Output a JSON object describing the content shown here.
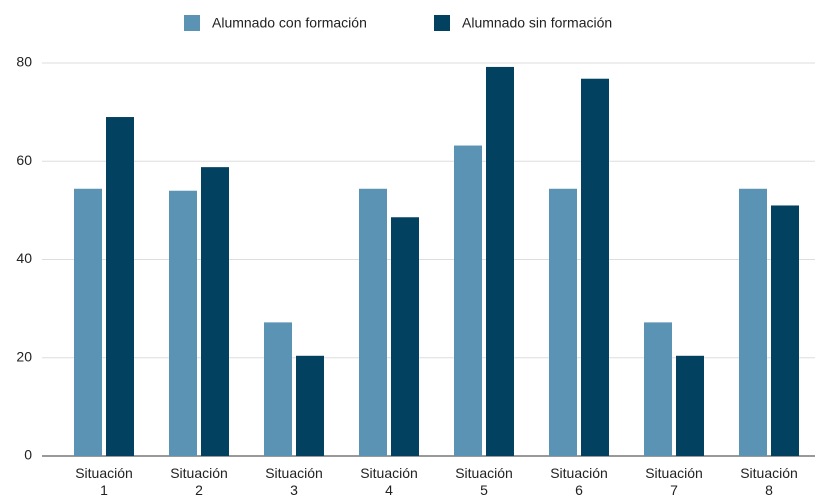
{
  "chart_data": {
    "type": "bar",
    "categories": [
      "Situación 1",
      "Situación 2",
      "Situación 3",
      "Situación 4",
      "Situación 5",
      "Situación 6",
      "Situación 7",
      "Situación 8"
    ],
    "series": [
      {
        "name": "Alumnado con formación",
        "color": "#5b93b4",
        "values": [
          54.4,
          54,
          27.2,
          54.4,
          63.2,
          54.4,
          27.2,
          54.4
        ]
      },
      {
        "name": "Alumnado sin formación",
        "color": "#02415f",
        "values": [
          69,
          58.8,
          20.4,
          48.6,
          79.2,
          76.8,
          20.4,
          51
        ]
      }
    ],
    "ylim": [
      0,
      80
    ],
    "yticks": [
      0,
      20,
      40,
      60,
      80
    ],
    "grid": true,
    "legend": "top"
  }
}
